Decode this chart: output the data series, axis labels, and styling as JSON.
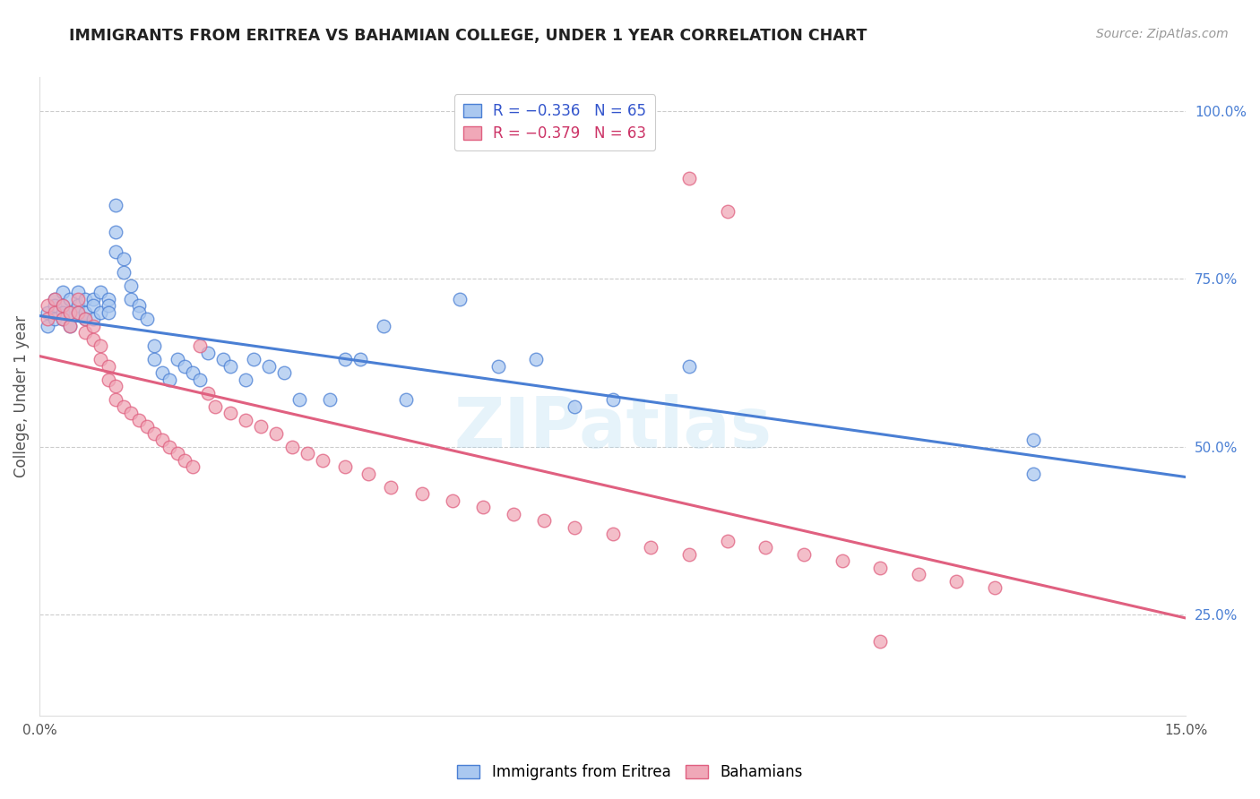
{
  "title": "IMMIGRANTS FROM ERITREA VS BAHAMIAN COLLEGE, UNDER 1 YEAR CORRELATION CHART",
  "source": "Source: ZipAtlas.com",
  "ylabel": "College, Under 1 year",
  "xlim": [
    0.0,
    0.15
  ],
  "ylim": [
    0.1,
    1.05
  ],
  "yticks_right": [
    0.25,
    0.5,
    0.75,
    1.0
  ],
  "ytick_right_labels": [
    "25.0%",
    "50.0%",
    "75.0%",
    "100.0%"
  ],
  "legend_label_colors": [
    "#3355cc",
    "#cc3366"
  ],
  "scatter_blue_x": [
    0.001,
    0.001,
    0.002,
    0.002,
    0.002,
    0.003,
    0.003,
    0.003,
    0.003,
    0.004,
    0.004,
    0.004,
    0.005,
    0.005,
    0.005,
    0.006,
    0.006,
    0.006,
    0.007,
    0.007,
    0.007,
    0.008,
    0.008,
    0.009,
    0.009,
    0.009,
    0.01,
    0.01,
    0.01,
    0.011,
    0.011,
    0.012,
    0.012,
    0.013,
    0.013,
    0.014,
    0.015,
    0.015,
    0.016,
    0.017,
    0.018,
    0.019,
    0.02,
    0.021,
    0.022,
    0.024,
    0.025,
    0.027,
    0.028,
    0.03,
    0.032,
    0.034,
    0.038,
    0.04,
    0.042,
    0.045,
    0.048,
    0.055,
    0.06,
    0.065,
    0.07,
    0.075,
    0.085,
    0.13,
    0.13
  ],
  "scatter_blue_y": [
    0.7,
    0.68,
    0.72,
    0.71,
    0.69,
    0.73,
    0.71,
    0.7,
    0.69,
    0.72,
    0.7,
    0.68,
    0.73,
    0.71,
    0.7,
    0.72,
    0.7,
    0.69,
    0.72,
    0.71,
    0.69,
    0.73,
    0.7,
    0.72,
    0.71,
    0.7,
    0.86,
    0.82,
    0.79,
    0.78,
    0.76,
    0.74,
    0.72,
    0.71,
    0.7,
    0.69,
    0.65,
    0.63,
    0.61,
    0.6,
    0.63,
    0.62,
    0.61,
    0.6,
    0.64,
    0.63,
    0.62,
    0.6,
    0.63,
    0.62,
    0.61,
    0.57,
    0.57,
    0.63,
    0.63,
    0.68,
    0.57,
    0.72,
    0.62,
    0.63,
    0.56,
    0.57,
    0.62,
    0.51,
    0.46
  ],
  "scatter_pink_x": [
    0.001,
    0.001,
    0.002,
    0.002,
    0.003,
    0.003,
    0.004,
    0.004,
    0.005,
    0.005,
    0.006,
    0.006,
    0.007,
    0.007,
    0.008,
    0.008,
    0.009,
    0.009,
    0.01,
    0.01,
    0.011,
    0.012,
    0.013,
    0.014,
    0.015,
    0.016,
    0.017,
    0.018,
    0.019,
    0.02,
    0.021,
    0.022,
    0.023,
    0.025,
    0.027,
    0.029,
    0.031,
    0.033,
    0.035,
    0.037,
    0.04,
    0.043,
    0.046,
    0.05,
    0.054,
    0.058,
    0.062,
    0.066,
    0.07,
    0.075,
    0.08,
    0.085,
    0.09,
    0.095,
    0.1,
    0.105,
    0.11,
    0.115,
    0.12,
    0.125,
    0.085,
    0.09,
    0.11
  ],
  "scatter_pink_y": [
    0.71,
    0.69,
    0.72,
    0.7,
    0.71,
    0.69,
    0.7,
    0.68,
    0.72,
    0.7,
    0.69,
    0.67,
    0.68,
    0.66,
    0.65,
    0.63,
    0.62,
    0.6,
    0.59,
    0.57,
    0.56,
    0.55,
    0.54,
    0.53,
    0.52,
    0.51,
    0.5,
    0.49,
    0.48,
    0.47,
    0.65,
    0.58,
    0.56,
    0.55,
    0.54,
    0.53,
    0.52,
    0.5,
    0.49,
    0.48,
    0.47,
    0.46,
    0.44,
    0.43,
    0.42,
    0.41,
    0.4,
    0.39,
    0.38,
    0.37,
    0.35,
    0.34,
    0.36,
    0.35,
    0.34,
    0.33,
    0.32,
    0.31,
    0.3,
    0.29,
    0.9,
    0.85,
    0.21
  ],
  "blue_line_x": [
    0.0,
    0.15
  ],
  "blue_line_y": [
    0.695,
    0.455
  ],
  "pink_line_x": [
    0.0,
    0.15
  ],
  "pink_line_y": [
    0.635,
    0.245
  ],
  "blue_color": "#4a7fd4",
  "pink_color": "#e06080",
  "blue_scatter_facecolor": "#aac8f0",
  "pink_scatter_facecolor": "#f0a8b8",
  "watermark_text": "ZIPatlas",
  "watermark_color": "#add8f0",
  "background_color": "#ffffff",
  "grid_color": "#cccccc",
  "legend1_text1": "R = −0.336",
  "legend1_text2": "N = 65",
  "legend2_text1": "R = −0.379",
  "legend2_text2": "N = 63",
  "bottom_legend_labels": [
    "Immigrants from Eritrea",
    "Bahamians"
  ]
}
